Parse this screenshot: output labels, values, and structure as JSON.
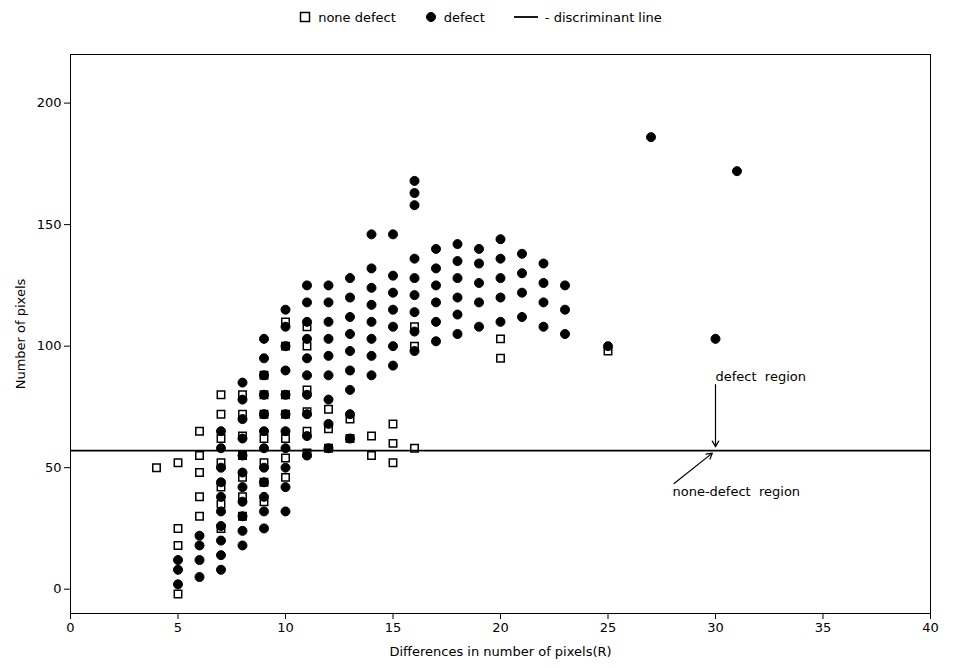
{
  "chart_data": {
    "type": "scatter",
    "xlabel": "Differences in number of pixels(R)",
    "ylabel": "Number of pixels",
    "xlim": [
      0,
      40
    ],
    "ylim": [
      -10,
      220
    ],
    "xticks": [
      0,
      5,
      10,
      15,
      20,
      25,
      30,
      35,
      40
    ],
    "yticks": [
      0,
      50,
      100,
      150,
      200
    ],
    "grid": false,
    "series": [
      {
        "name": "none defect",
        "type": "scatter",
        "marker": "square_open",
        "color": "#000000",
        "values": [
          [
            4,
            50
          ],
          [
            5,
            -2
          ],
          [
            5,
            18
          ],
          [
            5,
            25
          ],
          [
            5,
            52
          ],
          [
            6,
            30
          ],
          [
            6,
            38
          ],
          [
            6,
            48
          ],
          [
            6,
            55
          ],
          [
            6,
            65
          ],
          [
            7,
            25
          ],
          [
            7,
            35
          ],
          [
            7,
            42
          ],
          [
            7,
            52
          ],
          [
            7,
            62
          ],
          [
            7,
            72
          ],
          [
            7,
            80
          ],
          [
            8,
            30
          ],
          [
            8,
            38
          ],
          [
            8,
            46
          ],
          [
            8,
            55
          ],
          [
            8,
            63
          ],
          [
            8,
            72
          ],
          [
            8,
            80
          ],
          [
            9,
            36
          ],
          [
            9,
            44
          ],
          [
            9,
            52
          ],
          [
            9,
            62
          ],
          [
            9,
            72
          ],
          [
            9,
            80
          ],
          [
            9,
            88
          ],
          [
            10,
            46
          ],
          [
            10,
            54
          ],
          [
            10,
            62
          ],
          [
            10,
            72
          ],
          [
            10,
            80
          ],
          [
            10,
            100
          ],
          [
            10,
            110
          ],
          [
            11,
            56
          ],
          [
            11,
            65
          ],
          [
            11,
            73
          ],
          [
            11,
            82
          ],
          [
            11,
            100
          ],
          [
            11,
            108
          ],
          [
            12,
            58
          ],
          [
            12,
            66
          ],
          [
            12,
            74
          ],
          [
            13,
            62
          ],
          [
            13,
            70
          ],
          [
            14,
            55
          ],
          [
            14,
            63
          ],
          [
            15,
            52
          ],
          [
            15,
            60
          ],
          [
            15,
            68
          ],
          [
            16,
            58
          ],
          [
            16,
            100
          ],
          [
            16,
            108
          ],
          [
            20,
            95
          ],
          [
            20,
            103
          ],
          [
            25,
            98
          ]
        ]
      },
      {
        "name": "defect",
        "type": "scatter",
        "marker": "circle",
        "color": "#000000",
        "values": [
          [
            5,
            2
          ],
          [
            5,
            8
          ],
          [
            5,
            12
          ],
          [
            6,
            5
          ],
          [
            6,
            12
          ],
          [
            6,
            18
          ],
          [
            6,
            22
          ],
          [
            7,
            8
          ],
          [
            7,
            14
          ],
          [
            7,
            20
          ],
          [
            7,
            26
          ],
          [
            7,
            32
          ],
          [
            7,
            38
          ],
          [
            7,
            44
          ],
          [
            7,
            50
          ],
          [
            7,
            58
          ],
          [
            7,
            65
          ],
          [
            8,
            18
          ],
          [
            8,
            24
          ],
          [
            8,
            30
          ],
          [
            8,
            36
          ],
          [
            8,
            42
          ],
          [
            8,
            48
          ],
          [
            8,
            55
          ],
          [
            8,
            62
          ],
          [
            8,
            70
          ],
          [
            8,
            78
          ],
          [
            8,
            85
          ],
          [
            9,
            25
          ],
          [
            9,
            32
          ],
          [
            9,
            38
          ],
          [
            9,
            44
          ],
          [
            9,
            50
          ],
          [
            9,
            58
          ],
          [
            9,
            65
          ],
          [
            9,
            72
          ],
          [
            9,
            80
          ],
          [
            9,
            88
          ],
          [
            9,
            95
          ],
          [
            9,
            103
          ],
          [
            10,
            32
          ],
          [
            10,
            42
          ],
          [
            10,
            50
          ],
          [
            10,
            58
          ],
          [
            10,
            65
          ],
          [
            10,
            72
          ],
          [
            10,
            80
          ],
          [
            10,
            90
          ],
          [
            10,
            100
          ],
          [
            10,
            108
          ],
          [
            10,
            115
          ],
          [
            11,
            55
          ],
          [
            11,
            63
          ],
          [
            11,
            72
          ],
          [
            11,
            80
          ],
          [
            11,
            88
          ],
          [
            11,
            95
          ],
          [
            11,
            103
          ],
          [
            11,
            110
          ],
          [
            11,
            118
          ],
          [
            11,
            125
          ],
          [
            12,
            58
          ],
          [
            12,
            68
          ],
          [
            12,
            78
          ],
          [
            12,
            88
          ],
          [
            12,
            96
          ],
          [
            12,
            103
          ],
          [
            12,
            110
          ],
          [
            12,
            118
          ],
          [
            12,
            125
          ],
          [
            13,
            62
          ],
          [
            13,
            72
          ],
          [
            13,
            82
          ],
          [
            13,
            90
          ],
          [
            13,
            98
          ],
          [
            13,
            105
          ],
          [
            13,
            112
          ],
          [
            13,
            120
          ],
          [
            13,
            128
          ],
          [
            14,
            88
          ],
          [
            14,
            96
          ],
          [
            14,
            103
          ],
          [
            14,
            110
          ],
          [
            14,
            117
          ],
          [
            14,
            124
          ],
          [
            14,
            132
          ],
          [
            14,
            146
          ],
          [
            15,
            92
          ],
          [
            15,
            100
          ],
          [
            15,
            108
          ],
          [
            15,
            115
          ],
          [
            15,
            122
          ],
          [
            15,
            129
          ],
          [
            15,
            146
          ],
          [
            16,
            98
          ],
          [
            16,
            106
          ],
          [
            16,
            114
          ],
          [
            16,
            121
          ],
          [
            16,
            128
          ],
          [
            16,
            136
          ],
          [
            16,
            158
          ],
          [
            16,
            163
          ],
          [
            16,
            168
          ],
          [
            17,
            102
          ],
          [
            17,
            110
          ],
          [
            17,
            118
          ],
          [
            17,
            125
          ],
          [
            17,
            132
          ],
          [
            17,
            140
          ],
          [
            18,
            105
          ],
          [
            18,
            113
          ],
          [
            18,
            120
          ],
          [
            18,
            128
          ],
          [
            18,
            135
          ],
          [
            18,
            142
          ],
          [
            19,
            108
          ],
          [
            19,
            118
          ],
          [
            19,
            126
          ],
          [
            19,
            134
          ],
          [
            19,
            140
          ],
          [
            20,
            110
          ],
          [
            20,
            120
          ],
          [
            20,
            128
          ],
          [
            20,
            136
          ],
          [
            20,
            144
          ],
          [
            21,
            112
          ],
          [
            21,
            122
          ],
          [
            21,
            130
          ],
          [
            21,
            138
          ],
          [
            22,
            108
          ],
          [
            22,
            118
          ],
          [
            22,
            126
          ],
          [
            22,
            134
          ],
          [
            23,
            105
          ],
          [
            23,
            115
          ],
          [
            23,
            125
          ],
          [
            25,
            100
          ],
          [
            27,
            186
          ],
          [
            30,
            103
          ],
          [
            31,
            172
          ]
        ]
      },
      {
        "name": "- discriminant line",
        "type": "hline",
        "color": "#000000",
        "values": [
          57
        ]
      }
    ],
    "annotations": [
      {
        "text": "defect  region",
        "x": 30,
        "y": 85,
        "arrow_x": 30
      },
      {
        "text": "none-defect  region",
        "x": 28,
        "y": 43,
        "arrow_x": 30
      }
    ]
  }
}
